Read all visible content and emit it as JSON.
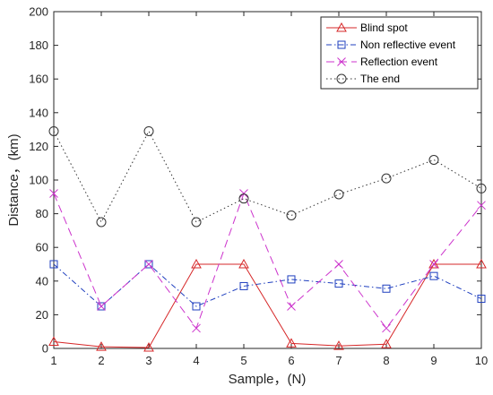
{
  "chart_data": {
    "type": "line",
    "x": [
      1,
      2,
      3,
      4,
      5,
      6,
      7,
      8,
      9,
      10
    ],
    "xlabel": "Sample，(N)",
    "ylabel": "Distance，(km)",
    "xlim": [
      1,
      10
    ],
    "ylim": [
      0,
      200
    ],
    "xticks": [
      "1",
      "2",
      "3",
      "4",
      "5",
      "6",
      "7",
      "8",
      "9",
      "10"
    ],
    "yticks": [
      "0",
      "20",
      "40",
      "60",
      "80",
      "100",
      "120",
      "140",
      "160",
      "180",
      "200"
    ],
    "grid": false,
    "legend_position": "top-right",
    "series": [
      {
        "name": "Blind spot",
        "values": [
          4,
          1,
          0.5,
          50,
          50,
          3,
          1.5,
          2.5,
          50,
          50
        ],
        "color": "#d62728",
        "dash": "solid",
        "marker": "triangle"
      },
      {
        "name": "Non reflective event",
        "values": [
          50,
          25,
          50,
          25,
          37,
          41,
          38.5,
          35.5,
          43,
          29.5
        ],
        "color": "#1f3fbf",
        "dash": "dashdot",
        "marker": "square"
      },
      {
        "name": "Reflection event",
        "values": [
          92,
          25,
          50,
          12,
          92,
          25,
          50,
          12,
          50,
          85
        ],
        "color": "#cc33cc",
        "dash": "dashed",
        "marker": "x"
      },
      {
        "name": "The end",
        "values": [
          129,
          75,
          129,
          75,
          89,
          79,
          91.5,
          101,
          112,
          95
        ],
        "color": "#333333",
        "dash": "dotted",
        "marker": "circle"
      }
    ]
  }
}
